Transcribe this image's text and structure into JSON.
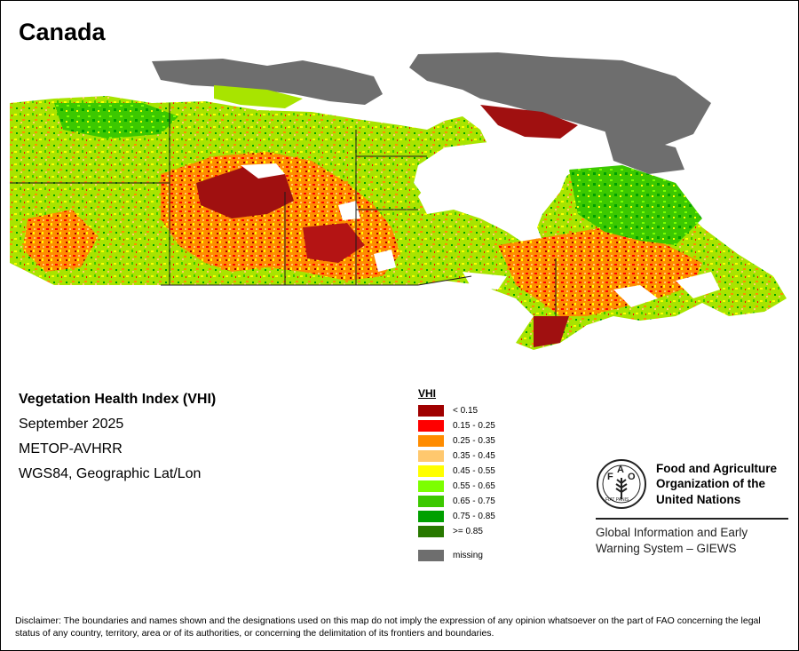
{
  "country": "Canada",
  "map": {
    "description_icon": "canada-vhi-raster-map",
    "dominant_colors": {
      "water": "#ffffff",
      "land": "#a4e000",
      "drought": "#a01010",
      "arctic_missing": "#666666",
      "border": "#1a1a1a"
    }
  },
  "info": {
    "title": "Vegetation Health Index (VHI)",
    "date": "September 2025",
    "sensor": "METOP-AVHRR",
    "projection": "WGS84, Geographic Lat/Lon"
  },
  "legend": {
    "title": "VHI",
    "items": [
      {
        "label": "< 0.15",
        "color": "#a00000"
      },
      {
        "label": "0.15 - 0.25",
        "color": "#ff0000"
      },
      {
        "label": "0.25 - 0.35",
        "color": "#ff8c00"
      },
      {
        "label": "0.35 - 0.45",
        "color": "#ffc86e"
      },
      {
        "label": "0.45 - 0.55",
        "color": "#ffff00"
      },
      {
        "label": "0.55 - 0.65",
        "color": "#7cff00"
      },
      {
        "label": "0.65 - 0.75",
        "color": "#3cc800"
      },
      {
        "label": "0.75 - 0.85",
        "color": "#00a000"
      },
      {
        "label": ">= 0.85",
        "color": "#287800"
      }
    ],
    "missing": {
      "label": "missing",
      "color": "#6e6e6e"
    }
  },
  "fao": {
    "logo_icon": "fao-emblem-icon",
    "emblem_text": "FIAT PANIS",
    "name_lines": [
      "Food and Agriculture",
      "Organization of the",
      "United Nations"
    ],
    "giews_lines": [
      "Global Information and Early",
      "Warning System – GIEWS"
    ]
  },
  "disclaimer": "Disclaimer: The boundaries and names shown and the designations used on this map do not imply the expression of any opinion whatsoever on the part of FAO concerning the legal status of any country, territory, area or of its authorities, or concerning the delimitation of its frontiers and boundaries."
}
